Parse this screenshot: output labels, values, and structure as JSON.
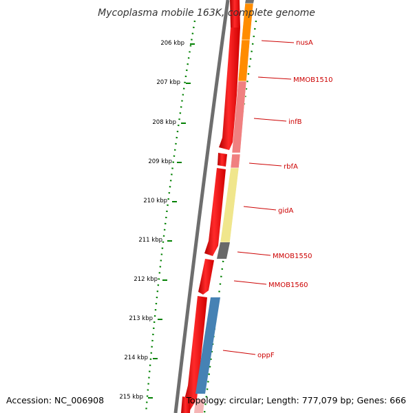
{
  "title": "Mycoplasma mobile 163K, complete genome",
  "footer": {
    "accession": "Accession: NC_006908",
    "stats": "Topology: circular; Length: 777,079 bp; Genes: 666"
  },
  "ticks": [
    "206 kbp",
    "207 kbp",
    "208 kbp",
    "209 kbp",
    "210 kbp",
    "211 kbp",
    "212 kbp",
    "213 kbp",
    "214 kbp",
    "215 kbp"
  ],
  "genes": [
    {
      "name": "nusA",
      "color": "#ff8c00"
    },
    {
      "name": "MMOB1510",
      "color": "#ff8c00"
    },
    {
      "name": "infB",
      "color": "#f08080"
    },
    {
      "name": "rbfA",
      "color": "#f08080"
    },
    {
      "name": "gidA",
      "color": "#f0e68c"
    },
    {
      "name": "MMOB1550",
      "color": "#696969"
    },
    {
      "name": "MMOB1560",
      "color": "#ffffff"
    },
    {
      "name": "oppF",
      "color": "#4682b4"
    }
  ],
  "colors": {
    "backbone": "#808080",
    "orf_track": "#ff0000",
    "gc_dots": "#008000",
    "gene_label": "#cc0000"
  }
}
